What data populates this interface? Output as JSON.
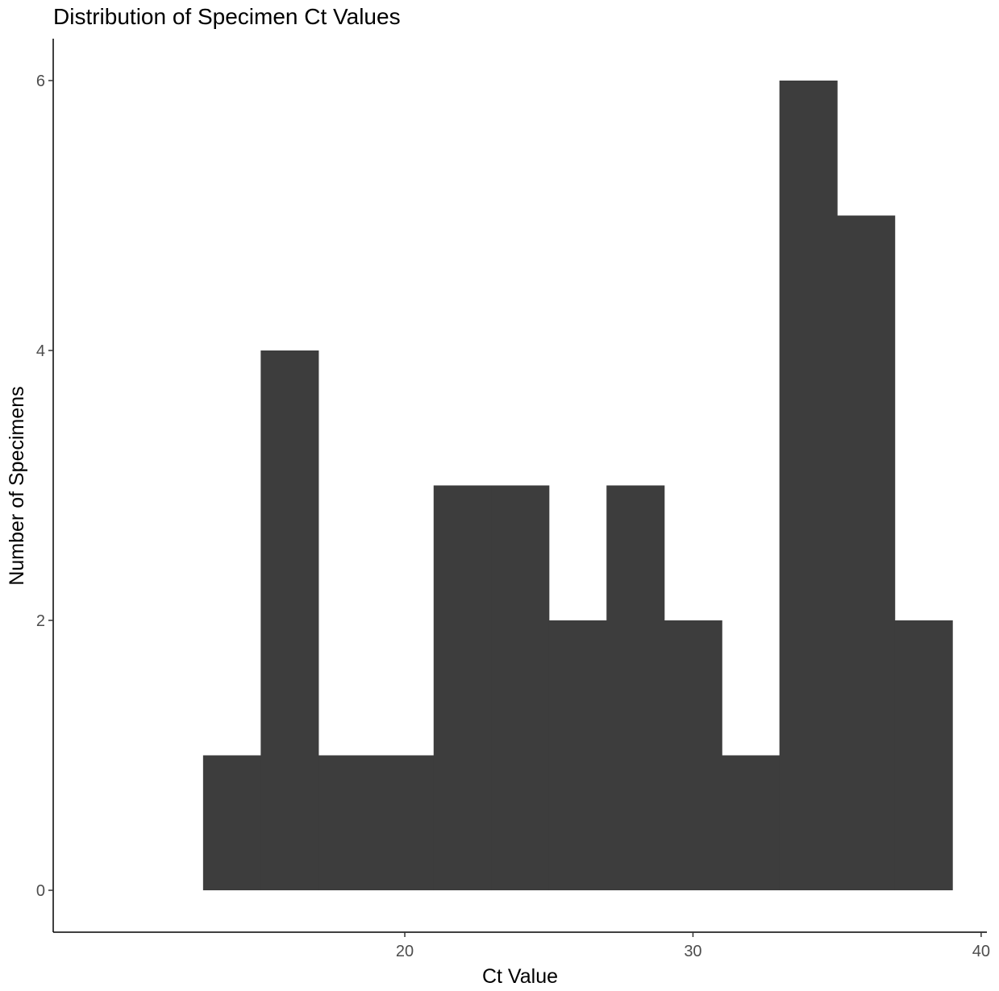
{
  "chart_data": {
    "type": "bar",
    "title": "Distribution of Specimen Ct Values",
    "xlabel": "Ct Value",
    "ylabel": "Number of Specimens",
    "xlim": [
      7.8,
      40.2
    ],
    "ylim": [
      0,
      6.3
    ],
    "x_ticks": [
      "20",
      "30",
      "40"
    ],
    "y_ticks": [
      "0",
      "2",
      "4",
      "6"
    ],
    "bar_color": "#3d3d3d",
    "bins": [
      {
        "start": 13,
        "end": 15,
        "count": 1
      },
      {
        "start": 15,
        "end": 17,
        "count": 4
      },
      {
        "start": 17,
        "end": 19,
        "count": 1
      },
      {
        "start": 19,
        "end": 21,
        "count": 1
      },
      {
        "start": 21,
        "end": 23,
        "count": 3
      },
      {
        "start": 23,
        "end": 25,
        "count": 3
      },
      {
        "start": 25,
        "end": 27,
        "count": 2
      },
      {
        "start": 27,
        "end": 29,
        "count": 3
      },
      {
        "start": 29,
        "end": 31,
        "count": 2
      },
      {
        "start": 31,
        "end": 33,
        "count": 1
      },
      {
        "start": 33,
        "end": 35,
        "count": 6
      },
      {
        "start": 35,
        "end": 37,
        "count": 5
      },
      {
        "start": 37,
        "end": 39,
        "count": 2
      }
    ],
    "grid": false,
    "legend": "none"
  }
}
